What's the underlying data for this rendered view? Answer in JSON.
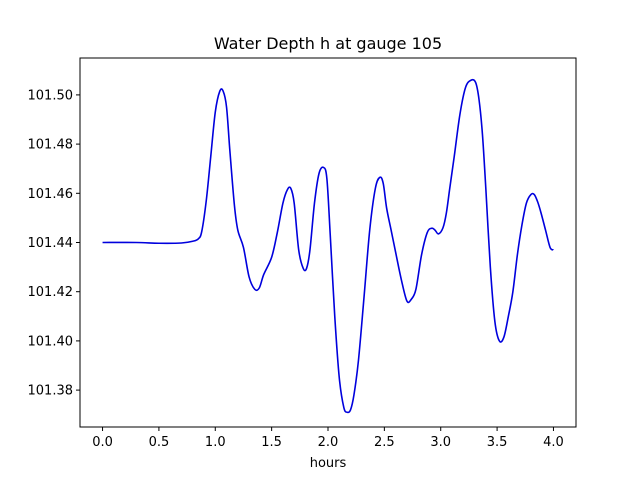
{
  "chart_data": {
    "type": "line",
    "title": "Water Depth h at gauge 105",
    "xlabel": "hours",
    "ylabel": "",
    "xlim": [
      -0.2,
      4.2
    ],
    "ylim": [
      101.365,
      101.515
    ],
    "xticks": [
      0.0,
      0.5,
      1.0,
      1.5,
      2.0,
      2.5,
      3.0,
      3.5,
      4.0
    ],
    "xtick_labels": [
      "0.0",
      "0.5",
      "1.0",
      "1.5",
      "2.0",
      "2.5",
      "3.0",
      "3.5",
      "4.0"
    ],
    "yticks": [
      101.38,
      101.4,
      101.42,
      101.44,
      101.46,
      101.48,
      101.5
    ],
    "ytick_labels": [
      "101.38",
      "101.40",
      "101.42",
      "101.44",
      "101.46",
      "101.48",
      "101.50"
    ],
    "grid": false,
    "series": [
      {
        "color": "#0000dd",
        "x": [
          0.0,
          0.3,
          0.5,
          0.7,
          0.8,
          0.85,
          0.88,
          0.92,
          0.96,
          1.0,
          1.04,
          1.07,
          1.1,
          1.13,
          1.17,
          1.2,
          1.25,
          1.3,
          1.35,
          1.39,
          1.43,
          1.5,
          1.55,
          1.6,
          1.64,
          1.67,
          1.7,
          1.74,
          1.78,
          1.81,
          1.84,
          1.88,
          1.92,
          1.96,
          1.99,
          2.02,
          2.06,
          2.1,
          2.14,
          2.17,
          2.2,
          2.23,
          2.27,
          2.32,
          2.37,
          2.42,
          2.46,
          2.49,
          2.52,
          2.56,
          2.6,
          2.65,
          2.7,
          2.74,
          2.78,
          2.83,
          2.88,
          2.92,
          2.95,
          2.98,
          3.02,
          3.05,
          3.08,
          3.12,
          3.17,
          3.22,
          3.27,
          3.31,
          3.34,
          3.37,
          3.4,
          3.44,
          3.48,
          3.52,
          3.56,
          3.6,
          3.64,
          3.68,
          3.72,
          3.76,
          3.8,
          3.83,
          3.86,
          3.89,
          3.93,
          3.97,
          4.0
        ],
        "y": [
          101.44,
          101.44,
          101.4397,
          101.4398,
          101.4405,
          101.4415,
          101.4445,
          101.457,
          101.475,
          101.493,
          101.5015,
          101.5015,
          101.495,
          101.477,
          101.455,
          101.445,
          101.438,
          101.426,
          101.421,
          101.4215,
          101.427,
          101.434,
          101.444,
          101.456,
          101.4615,
          101.462,
          101.456,
          101.437,
          101.4295,
          101.4295,
          101.437,
          101.456,
          101.468,
          101.4705,
          101.466,
          101.443,
          101.41,
          101.385,
          101.373,
          101.371,
          101.372,
          101.378,
          101.392,
          101.418,
          101.445,
          101.462,
          101.4665,
          101.464,
          101.454,
          101.445,
          101.436,
          101.425,
          101.4162,
          101.417,
          101.421,
          101.435,
          101.444,
          101.4458,
          101.445,
          101.4435,
          101.446,
          101.452,
          101.462,
          101.475,
          101.492,
          101.503,
          101.506,
          101.505,
          101.498,
          101.484,
          101.462,
          101.43,
          101.408,
          101.4,
          101.4015,
          101.41,
          101.42,
          101.435,
          101.447,
          101.456,
          101.4595,
          101.4595,
          101.4565,
          101.452,
          101.445,
          101.438,
          101.437
        ]
      }
    ]
  }
}
